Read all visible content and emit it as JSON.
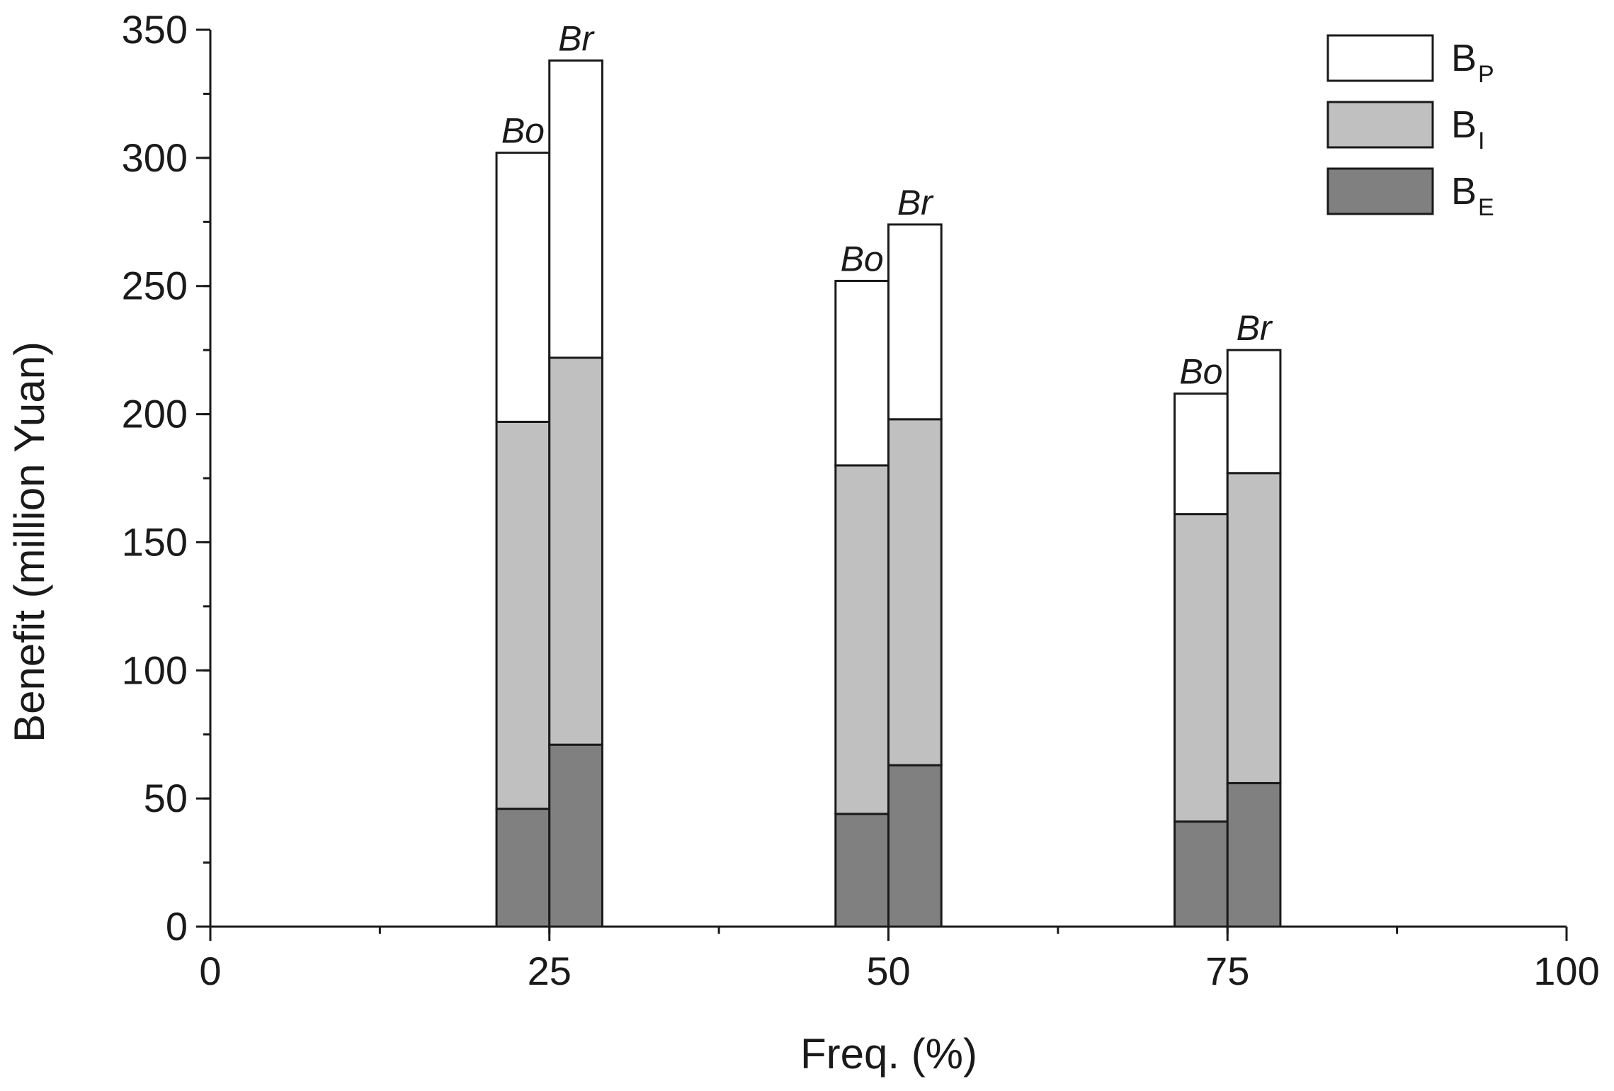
{
  "chart_data": {
    "type": "bar",
    "stacked": true,
    "xlabel": "Freq. (%)",
    "ylabel": "Benefit (million Yuan)",
    "xlim": [
      0,
      100
    ],
    "ylim": [
      0,
      350
    ],
    "x_ticks": [
      0,
      25,
      50,
      75,
      100
    ],
    "y_ticks": [
      0,
      50,
      100,
      150,
      200,
      250,
      300,
      350
    ],
    "x_minor_tick_step": 12.5,
    "y_minor_tick_step": 25,
    "grid": false,
    "legend_position": "top-right",
    "groups": [
      {
        "x": 25,
        "bars": [
          {
            "label": "Bo",
            "B_E": 46,
            "B_I": 151,
            "B_P": 105
          },
          {
            "label": "Br",
            "B_E": 71,
            "B_I": 151,
            "B_P": 116
          }
        ]
      },
      {
        "x": 50,
        "bars": [
          {
            "label": "Bo",
            "B_E": 44,
            "B_I": 136,
            "B_P": 72
          },
          {
            "label": "Br",
            "B_E": 63,
            "B_I": 135,
            "B_P": 76
          }
        ]
      },
      {
        "x": 75,
        "bars": [
          {
            "label": "Bo",
            "B_E": 41,
            "B_I": 120,
            "B_P": 47
          },
          {
            "label": "Br",
            "B_E": 56,
            "B_I": 121,
            "B_P": 48
          }
        ]
      }
    ],
    "series": [
      {
        "key": "B_P",
        "name": "B",
        "subscript": "P",
        "color": "#ffffff"
      },
      {
        "key": "B_I",
        "name": "B",
        "subscript": "I",
        "color": "#c0c0c0"
      },
      {
        "key": "B_E",
        "name": "B",
        "subscript": "E",
        "color": "#808080"
      }
    ],
    "stack_order": [
      "B_E",
      "B_I",
      "B_P"
    ],
    "bar_width_units": 3.9
  }
}
